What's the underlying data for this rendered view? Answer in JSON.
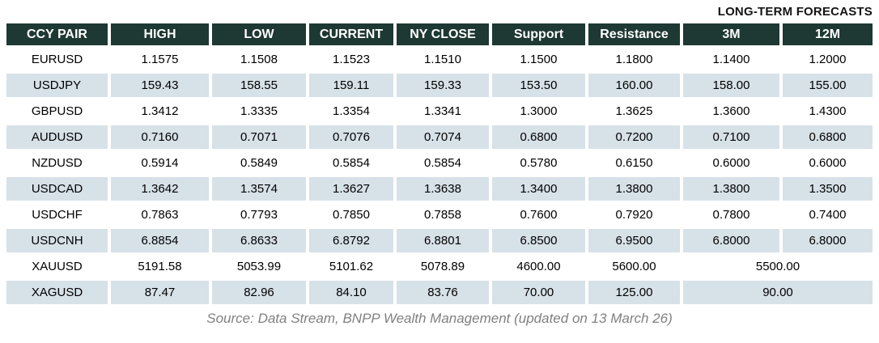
{
  "title": "LONG-TERM FORECASTS",
  "source": "Source: Data Stream, BNPP Wealth Management (updated on 13 March 26)",
  "colors": {
    "header_bg": "#1e3833",
    "header_text": "#ffffff",
    "alt_row_bg": "#d7e1e8",
    "title_text": "#141414",
    "source_text": "#808080"
  },
  "table": {
    "headers": [
      "CCY PAIR",
      "HIGH",
      "LOW",
      "CURRENT",
      "NY CLOSE",
      "Support",
      "Resistance",
      "3M",
      "12M"
    ],
    "rows": [
      {
        "pair": "EURUSD",
        "high": "1.1575",
        "low": "1.1508",
        "current": "1.1523",
        "ny_close": "1.1510",
        "support": "1.1500",
        "resistance": "1.1800",
        "m3": "1.1400",
        "m12": "1.2000"
      },
      {
        "pair": "USDJPY",
        "high": "159.43",
        "low": "158.55",
        "current": "159.11",
        "ny_close": "159.33",
        "support": "153.50",
        "resistance": "160.00",
        "m3": "158.00",
        "m12": "155.00"
      },
      {
        "pair": "GBPUSD",
        "high": "1.3412",
        "low": "1.3335",
        "current": "1.3354",
        "ny_close": "1.3341",
        "support": "1.3000",
        "resistance": "1.3625",
        "m3": "1.3600",
        "m12": "1.4300"
      },
      {
        "pair": "AUDUSD",
        "high": "0.7160",
        "low": "0.7071",
        "current": "0.7076",
        "ny_close": "0.7074",
        "support": "0.6800",
        "resistance": "0.7200",
        "m3": "0.7100",
        "m12": "0.6800"
      },
      {
        "pair": "NZDUSD",
        "high": "0.5914",
        "low": "0.5849",
        "current": "0.5854",
        "ny_close": "0.5854",
        "support": "0.5780",
        "resistance": "0.6150",
        "m3": "0.6000",
        "m12": "0.6000"
      },
      {
        "pair": "USDCAD",
        "high": "1.3642",
        "low": "1.3574",
        "current": "1.3627",
        "ny_close": "1.3638",
        "support": "1.3400",
        "resistance": "1.3800",
        "m3": "1.3800",
        "m12": "1.3500"
      },
      {
        "pair": "USDCHF",
        "high": "0.7863",
        "low": "0.7793",
        "current": "0.7850",
        "ny_close": "0.7858",
        "support": "0.7600",
        "resistance": "0.7920",
        "m3": "0.7800",
        "m12": "0.7400"
      },
      {
        "pair": "USDCNH",
        "high": "6.8854",
        "low": "6.8633",
        "current": "6.8792",
        "ny_close": "6.8801",
        "support": "6.8500",
        "resistance": "6.9500",
        "m3": "6.8000",
        "m12": "6.8000"
      },
      {
        "pair": "XAUUSD",
        "high": "5191.58",
        "low": "5053.99",
        "current": "5101.62",
        "ny_close": "5078.89",
        "support": "4600.00",
        "resistance": "5600.00",
        "forecast_merged": "5500.00"
      },
      {
        "pair": "XAGUSD",
        "high": "87.47",
        "low": "82.96",
        "current": "84.10",
        "ny_close": "83.76",
        "support": "70.00",
        "resistance": "125.00",
        "forecast_merged": "90.00"
      }
    ]
  }
}
